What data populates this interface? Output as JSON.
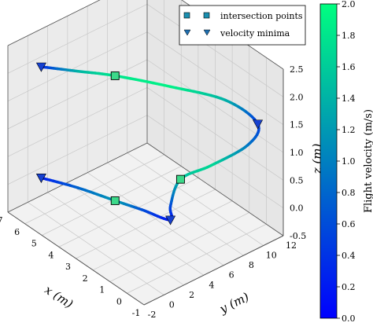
{
  "chart_data": {
    "type": "line",
    "subtype": "3d-trajectory",
    "title": "",
    "axes": {
      "x": {
        "label": "x (m)",
        "ticks": [
          "-1",
          "0",
          "1",
          "2",
          "3",
          "4",
          "5",
          "6",
          "7"
        ],
        "range": [
          -1,
          7
        ]
      },
      "y": {
        "label": "y (m)",
        "ticks": [
          "-2",
          "0",
          "2",
          "4",
          "6",
          "8",
          "10",
          "12"
        ],
        "range": [
          -2,
          12
        ]
      },
      "z": {
        "label": "z (m)",
        "ticks": [
          "-0.5",
          "0.0",
          "0.5",
          "1.0",
          "1.5",
          "2.0",
          "2.5"
        ],
        "range": [
          -0.5,
          2.5
        ]
      }
    },
    "grid": true,
    "legend": {
      "position": "top-right",
      "entries": [
        {
          "label": "intersection points",
          "marker": "square",
          "color": "#1b9e6e"
        },
        {
          "label": "velocity minima",
          "marker": "triangle-down",
          "color": "#1f6fb0"
        }
      ]
    },
    "colorbar": {
      "label": "Flight velocity (m/s)",
      "ticks": [
        "0.0",
        "0.2",
        "0.4",
        "0.6",
        "0.8",
        "1.0",
        "1.2",
        "1.4",
        "1.6",
        "1.8",
        "2.0"
      ],
      "range": [
        0,
        2.0
      ],
      "colors": [
        "#0000ff",
        "#00ff80"
      ]
    },
    "trajectory": [
      {
        "x": 6.5,
        "y": 0.5,
        "z": 2.0,
        "v": 0.2
      },
      {
        "x": 5.5,
        "y": 2.5,
        "z": 1.95,
        "v": 1.4
      },
      {
        "x": 4.5,
        "y": 4.5,
        "z": 1.9,
        "v": 1.8
      },
      {
        "x": 3.0,
        "y": 7.5,
        "z": 1.75,
        "v": 1.9
      },
      {
        "x": 1.5,
        "y": 10.5,
        "z": 1.55,
        "v": 1.4
      },
      {
        "x": 0.5,
        "y": 12.0,
        "z": 1.2,
        "v": 0.4
      },
      {
        "x": 0.8,
        "y": 11.5,
        "z": 0.8,
        "v": 0.9
      },
      {
        "x": 1.8,
        "y": 9.5,
        "z": 0.4,
        "v": 1.7
      },
      {
        "x": 2.7,
        "y": 8.0,
        "z": 0.1,
        "v": 1.5
      },
      {
        "x": 3.0,
        "y": 7.5,
        "z": -0.4,
        "v": 0.6
      },
      {
        "x": 3.0,
        "y": 7.5,
        "z": -0.65,
        "v": 0.1
      },
      {
        "x": 3.8,
        "y": 6.0,
        "z": -0.5,
        "v": 0.6
      },
      {
        "x": 4.5,
        "y": 4.5,
        "z": -0.35,
        "v": 1.2
      },
      {
        "x": 5.5,
        "y": 2.5,
        "z": -0.15,
        "v": 0.8
      },
      {
        "x": 6.5,
        "y": 0.5,
        "z": 0.0,
        "v": 0.2
      }
    ],
    "intersection_points": [
      {
        "x": 4.5,
        "y": 4.5,
        "z": 1.9
      },
      {
        "x": 2.7,
        "y": 8.0,
        "z": 0.1
      },
      {
        "x": 4.5,
        "y": 4.5,
        "z": -0.35
      }
    ],
    "velocity_minima": [
      {
        "x": 6.5,
        "y": 0.5,
        "z": 2.0
      },
      {
        "x": 0.5,
        "y": 12.0,
        "z": 1.2
      },
      {
        "x": 3.0,
        "y": 7.5,
        "z": -0.65
      },
      {
        "x": 6.5,
        "y": 0.5,
        "z": 0.0
      }
    ]
  }
}
